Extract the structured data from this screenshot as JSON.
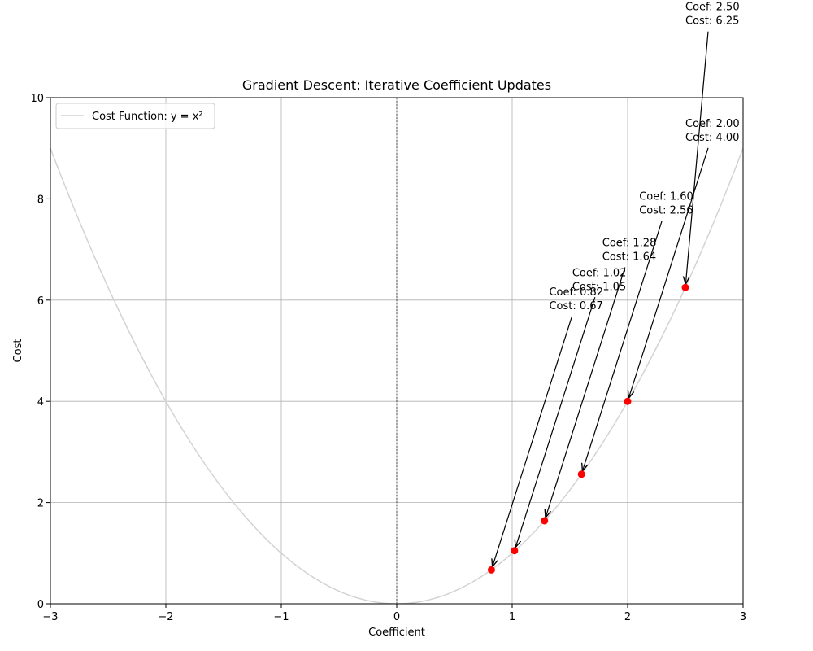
{
  "chart_data": {
    "type": "line",
    "title": "Gradient Descent: Iterative Coefficient Updates",
    "xlabel": "Coefficient",
    "ylabel": "Cost",
    "xlim": [
      -3,
      3
    ],
    "ylim": [
      0,
      10
    ],
    "xticks": [
      -3,
      -2,
      -1,
      0,
      1,
      2,
      3
    ],
    "xtick_labels": [
      "−3",
      "−2",
      "−1",
      "0",
      "1",
      "2",
      "3"
    ],
    "yticks": [
      0,
      2,
      4,
      6,
      8,
      10
    ],
    "ytick_labels": [
      "0",
      "2",
      "4",
      "6",
      "8",
      "10"
    ],
    "grid": true,
    "legend_position": "top-left",
    "series": [
      {
        "name": "Cost Function: y = x²",
        "kind": "curve",
        "function": "x^2",
        "x_range": [
          -3,
          3
        ],
        "color": "#d3d3d3"
      },
      {
        "kind": "points",
        "color": "#ff0000",
        "x": [
          2.5,
          2.0,
          1.6,
          1.28,
          1.02,
          0.82
        ],
        "y": [
          6.25,
          4.0,
          2.56,
          1.64,
          1.05,
          0.67
        ]
      }
    ],
    "annotations": [
      {
        "line1": "Coef: 2.50",
        "line2": "Cost: 6.25",
        "x": 2.5,
        "y": 6.25,
        "text_x": 2.5,
        "text_y": 11.5
      },
      {
        "line1": "Coef: 2.00",
        "line2": "Cost: 4.00",
        "x": 2.0,
        "y": 4.0,
        "text_x": 2.5,
        "text_y": 9.2
      },
      {
        "line1": "Coef: 1.60",
        "line2": "Cost: 2.56",
        "x": 1.6,
        "y": 2.56,
        "text_x": 2.1,
        "text_y": 7.76
      },
      {
        "line1": "Coef: 1.28",
        "line2": "Cost: 1.64",
        "x": 1.28,
        "y": 1.64,
        "text_x": 1.78,
        "text_y": 6.84
      },
      {
        "line1": "Coef: 1.02",
        "line2": "Cost: 1.05",
        "x": 1.02,
        "y": 1.05,
        "text_x": 1.52,
        "text_y": 6.25
      },
      {
        "line1": "Coef: 0.82",
        "line2": "Cost: 0.67",
        "x": 0.82,
        "y": 0.67,
        "text_x": 1.32,
        "text_y": 5.87
      }
    ],
    "reference_line": {
      "x": 0,
      "style": "dashed",
      "color": "#000000"
    }
  }
}
